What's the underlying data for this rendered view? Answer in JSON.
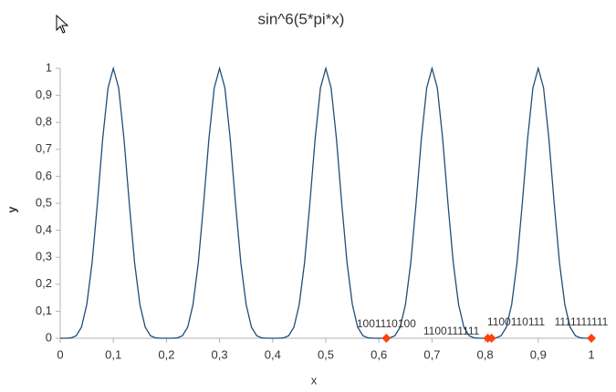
{
  "chart_data": {
    "type": "line",
    "title": "sin^6(5*pi*x)",
    "x_label": "x",
    "y_label": "y",
    "x": [
      0,
      0.01,
      0.02,
      0.03,
      0.04,
      0.05,
      0.06,
      0.07,
      0.08,
      0.09,
      0.1,
      0.11,
      0.12,
      0.13,
      0.14,
      0.15,
      0.16,
      0.17,
      0.18,
      0.19,
      0.2,
      0.21,
      0.22,
      0.23,
      0.24,
      0.25,
      0.26,
      0.27,
      0.28,
      0.29,
      0.3,
      0.31,
      0.32,
      0.33,
      0.34,
      0.35,
      0.36,
      0.37,
      0.38,
      0.39,
      0.4,
      0.41,
      0.42,
      0.43,
      0.44,
      0.45,
      0.46,
      0.47,
      0.48,
      0.49,
      0.5,
      0.51,
      0.52,
      0.53,
      0.54,
      0.55,
      0.56,
      0.57,
      0.58,
      0.59,
      0.6,
      0.61,
      0.62,
      0.63,
      0.64,
      0.65,
      0.66,
      0.67,
      0.68,
      0.69,
      0.7,
      0.71,
      0.72,
      0.73,
      0.74,
      0.75,
      0.76,
      0.77,
      0.78,
      0.79,
      0.8,
      0.81,
      0.82,
      0.83,
      0.84,
      0.85,
      0.86,
      0.87,
      0.88,
      0.89,
      0.9,
      0.91,
      0.92,
      0.93,
      0.94,
      0.95,
      0.96,
      0.97,
      0.98,
      0.99,
      1
    ],
    "series": [
      {
        "name": "sin^6(5*pi*x)",
        "color": "#1f4e79",
        "values": [
          0,
          0,
          0.001,
          0.009,
          0.041,
          0.125,
          0.28,
          0.5,
          0.74,
          0.928,
          1,
          0.928,
          0.74,
          0.5,
          0.28,
          0.125,
          0.041,
          0.009,
          0.001,
          0,
          0,
          0,
          0.001,
          0.009,
          0.041,
          0.125,
          0.28,
          0.5,
          0.74,
          0.928,
          1,
          0.928,
          0.74,
          0.5,
          0.28,
          0.125,
          0.041,
          0.009,
          0.001,
          0,
          0,
          0,
          0.001,
          0.009,
          0.041,
          0.125,
          0.28,
          0.5,
          0.74,
          0.928,
          1,
          0.928,
          0.74,
          0.5,
          0.28,
          0.125,
          0.041,
          0.009,
          0.001,
          0,
          0,
          0,
          0.001,
          0.009,
          0.041,
          0.125,
          0.28,
          0.5,
          0.74,
          0.928,
          1,
          0.928,
          0.74,
          0.5,
          0.28,
          0.125,
          0.041,
          0.009,
          0.001,
          0,
          0,
          0,
          0.001,
          0.009,
          0.041,
          0.125,
          0.28,
          0.5,
          0.74,
          0.928,
          1,
          0.928,
          0.74,
          0.5,
          0.28,
          0.125,
          0.041,
          0.009,
          0.001,
          0,
          0
        ]
      }
    ],
    "points": {
      "color": "#ff420e",
      "x": [
        0.614,
        0.812,
        0.805,
        1
      ],
      "values": [
        0,
        0,
        0,
        0
      ],
      "labels": [
        "1001110100",
        "1100111111",
        "1100110111",
        "1111111111"
      ]
    },
    "xlim": [
      0,
      1
    ],
    "ylim": [
      0,
      1
    ],
    "xticks": [
      0,
      {
        "value": 0.1,
        "label": "0,1"
      },
      {
        "value": 0.2,
        "label": "0,2"
      },
      {
        "value": 0.3,
        "label": "0,3"
      },
      {
        "value": 0.4,
        "label": "0,4"
      },
      {
        "value": 0.5,
        "label": "0,5"
      },
      {
        "value": 0.6,
        "label": "0,6"
      },
      {
        "value": 0.7,
        "label": "0,7"
      },
      {
        "value": 0.8,
        "label": "0,8"
      },
      {
        "value": 0.9,
        "label": "0,9"
      },
      1
    ],
    "yticks": [
      0,
      {
        "value": 0.1,
        "label": "0,1"
      },
      {
        "value": 0.2,
        "label": "0,2"
      },
      {
        "value": 0.3,
        "label": "0,3"
      },
      {
        "value": 0.4,
        "label": "0,4"
      },
      {
        "value": 0.5,
        "label": "0,5"
      },
      {
        "value": 0.6,
        "label": "0,6"
      },
      {
        "value": 0.7,
        "label": "0,7"
      },
      {
        "value": 0.8,
        "label": "0,8"
      },
      {
        "value": 0.9,
        "label": "0,9"
      },
      1
    ],
    "grid": false
  }
}
